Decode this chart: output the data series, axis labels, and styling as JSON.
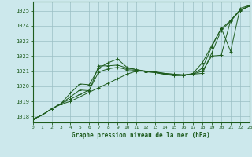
{
  "title": "Graphe pression niveau de la mer (hPa)",
  "bg_color": "#cce8ec",
  "grid_color": "#9bbfc4",
  "line_color": "#1e5c1e",
  "x_min": 0,
  "x_max": 23,
  "y_min": 1017.6,
  "y_max": 1025.6,
  "y_ticks": [
    1018,
    1019,
    1020,
    1021,
    1022,
    1023,
    1024,
    1025
  ],
  "x_ticks": [
    0,
    1,
    2,
    3,
    4,
    5,
    6,
    7,
    8,
    9,
    10,
    11,
    12,
    13,
    14,
    15,
    16,
    17,
    18,
    19,
    20,
    21,
    22,
    23
  ],
  "series": [
    [
      1017.8,
      1018.1,
      1018.5,
      1018.8,
      1019.0,
      1019.3,
      1019.6,
      1019.9,
      1020.2,
      1020.5,
      1020.8,
      1021.0,
      1021.0,
      1020.9,
      1020.85,
      1020.8,
      1020.75,
      1020.8,
      1020.85,
      1022.2,
      1023.7,
      1024.3,
      1025.0,
      1025.3
    ],
    [
      1017.8,
      1018.1,
      1018.5,
      1018.85,
      1019.15,
      1019.45,
      1019.75,
      1020.95,
      1021.15,
      1021.25,
      1021.1,
      1021.05,
      1021.0,
      1020.95,
      1020.85,
      1020.78,
      1020.75,
      1020.8,
      1021.0,
      1022.0,
      1022.05,
      1024.35,
      1025.05,
      1025.3
    ],
    [
      1017.8,
      1018.1,
      1018.5,
      1018.85,
      1019.55,
      1020.15,
      1020.1,
      1021.2,
      1021.55,
      1021.8,
      1021.25,
      1021.1,
      1021.0,
      1020.95,
      1020.82,
      1020.72,
      1020.72,
      1020.8,
      1021.2,
      1022.6,
      1023.85,
      1022.3,
      1025.15,
      1025.35
    ],
    [
      1017.8,
      1018.1,
      1018.5,
      1018.85,
      1019.3,
      1019.75,
      1019.7,
      1021.35,
      1021.35,
      1021.4,
      1021.2,
      1021.1,
      1020.95,
      1020.9,
      1020.78,
      1020.7,
      1020.72,
      1020.85,
      1021.55,
      1022.7,
      1023.8,
      1024.35,
      1025.05,
      1025.3
    ]
  ]
}
